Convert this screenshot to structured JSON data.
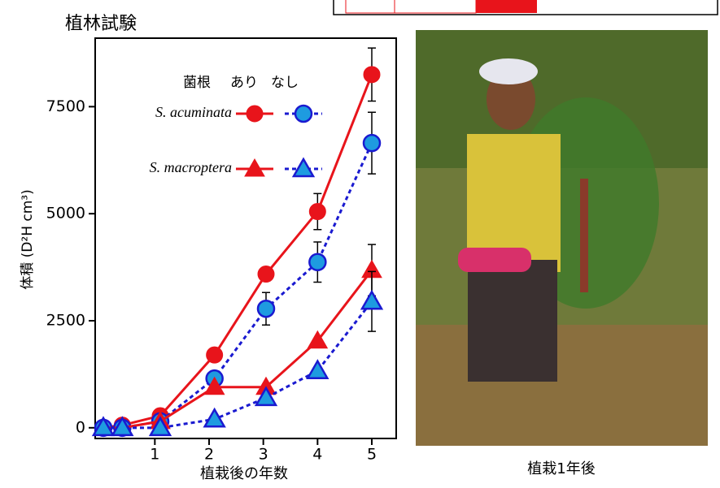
{
  "chart_data": {
    "type": "line",
    "title": "植林試験",
    "xlabel": "植栽後の年数",
    "ylabel": "体積 (D²H cm³)",
    "xlim": [
      -0.1,
      5.45
    ],
    "ylim": [
      -250,
      9100
    ],
    "xticks": [
      1,
      2,
      3,
      4,
      5
    ],
    "yticks": [
      0,
      2500,
      5000,
      7500
    ],
    "x": [
      0.05,
      0.4,
      1.1,
      2.1,
      3.05,
      4,
      5
    ],
    "legend": {
      "title": "菌根",
      "columns": [
        "あり",
        "なし"
      ]
    },
    "series": [
      {
        "name": "S. acuminata",
        "marker": "circle",
        "groups": [
          {
            "color": "#e8141b",
            "values": [
              0,
              60,
              280,
              1700,
              3590,
              5050,
              8250
            ],
            "errors": [
              null,
              null,
              null,
              null,
              null,
              420,
              620
            ]
          },
          {
            "color": "#1a1ad0",
            "fill": "#1e9be0",
            "dashed": true,
            "values": [
              0,
              0,
              150,
              1150,
              2780,
              3870,
              6650
            ],
            "errors": [
              null,
              null,
              null,
              null,
              380,
              470,
              720
            ]
          }
        ]
      },
      {
        "name": "S. macroptera",
        "marker": "triangle",
        "groups": [
          {
            "color": "#e8141b",
            "values": [
              0,
              0,
              150,
              950,
              950,
              2030,
              3680
            ],
            "errors": [
              null,
              null,
              null,
              null,
              null,
              null,
              600
            ]
          },
          {
            "color": "#1a1ad0",
            "fill": "#1e9be0",
            "dashed": true,
            "values": [
              0,
              0,
              0,
              200,
              700,
              1330,
              2950
            ],
            "errors": [
              null,
              null,
              null,
              null,
              null,
              null,
              700
            ]
          }
        ]
      }
    ]
  },
  "photo": {
    "caption": "植栽1年後"
  }
}
